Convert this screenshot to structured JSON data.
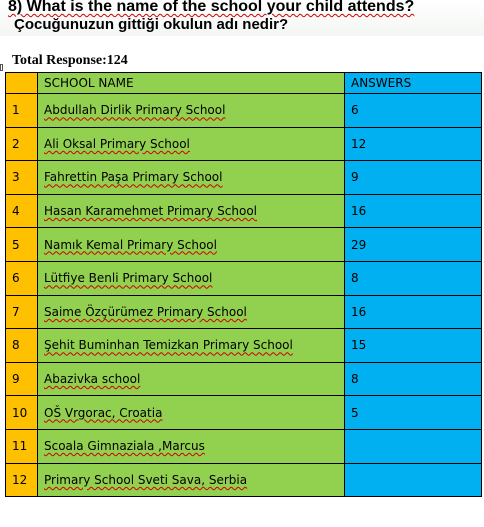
{
  "question": {
    "english": "8) What is  the name of the school your child attends?",
    "turkish": "Çocuğunuzun gittiği  okulun adı nedir?"
  },
  "total_response": "Total Response:124",
  "table": {
    "headers": {
      "school": "SCHOOL NAME",
      "answers": "ANSWERS"
    },
    "rows": [
      {
        "num": "1",
        "school": "Abdullah Dirlik Primary School",
        "answers": "6"
      },
      {
        "num": "2",
        "school": "Ali Oksal Primary School",
        "answers": "12"
      },
      {
        "num": "3",
        "school": "Fahrettin Paşa Primary School",
        "answers": "9"
      },
      {
        "num": "4",
        "school": "Hasan Karamehmet Primary School",
        "answers": "16"
      },
      {
        "num": "5",
        "school": "Namık Kemal Primary School",
        "answers": "29"
      },
      {
        "num": "6",
        "school": "Lütfiye Benli Primary School",
        "answers": "8"
      },
      {
        "num": "7",
        "school": "Saime Özçürümez Primary School",
        "answers": "16"
      },
      {
        "num": "8",
        "school": "Şehit Buminhan Temizkan Primary School",
        "answers": "15"
      },
      {
        "num": "9",
        "school": "Abazivka school",
        "answers": "8"
      },
      {
        "num": "10",
        "school": "OŠ Vrgorac, Croatia",
        "answers": "5"
      },
      {
        "num": "11",
        "school": "Scoala Gimnaziala ,Marcus",
        "answers": ""
      },
      {
        "num": "12",
        "school": "Primary School Sveti Sava, Serbia",
        "answers": ""
      }
    ]
  },
  "colors": {
    "number_column": "#ffc000",
    "school_column": "#92d050",
    "answers_column": "#00b0f0",
    "spellcheck_underline": "#d00000"
  }
}
